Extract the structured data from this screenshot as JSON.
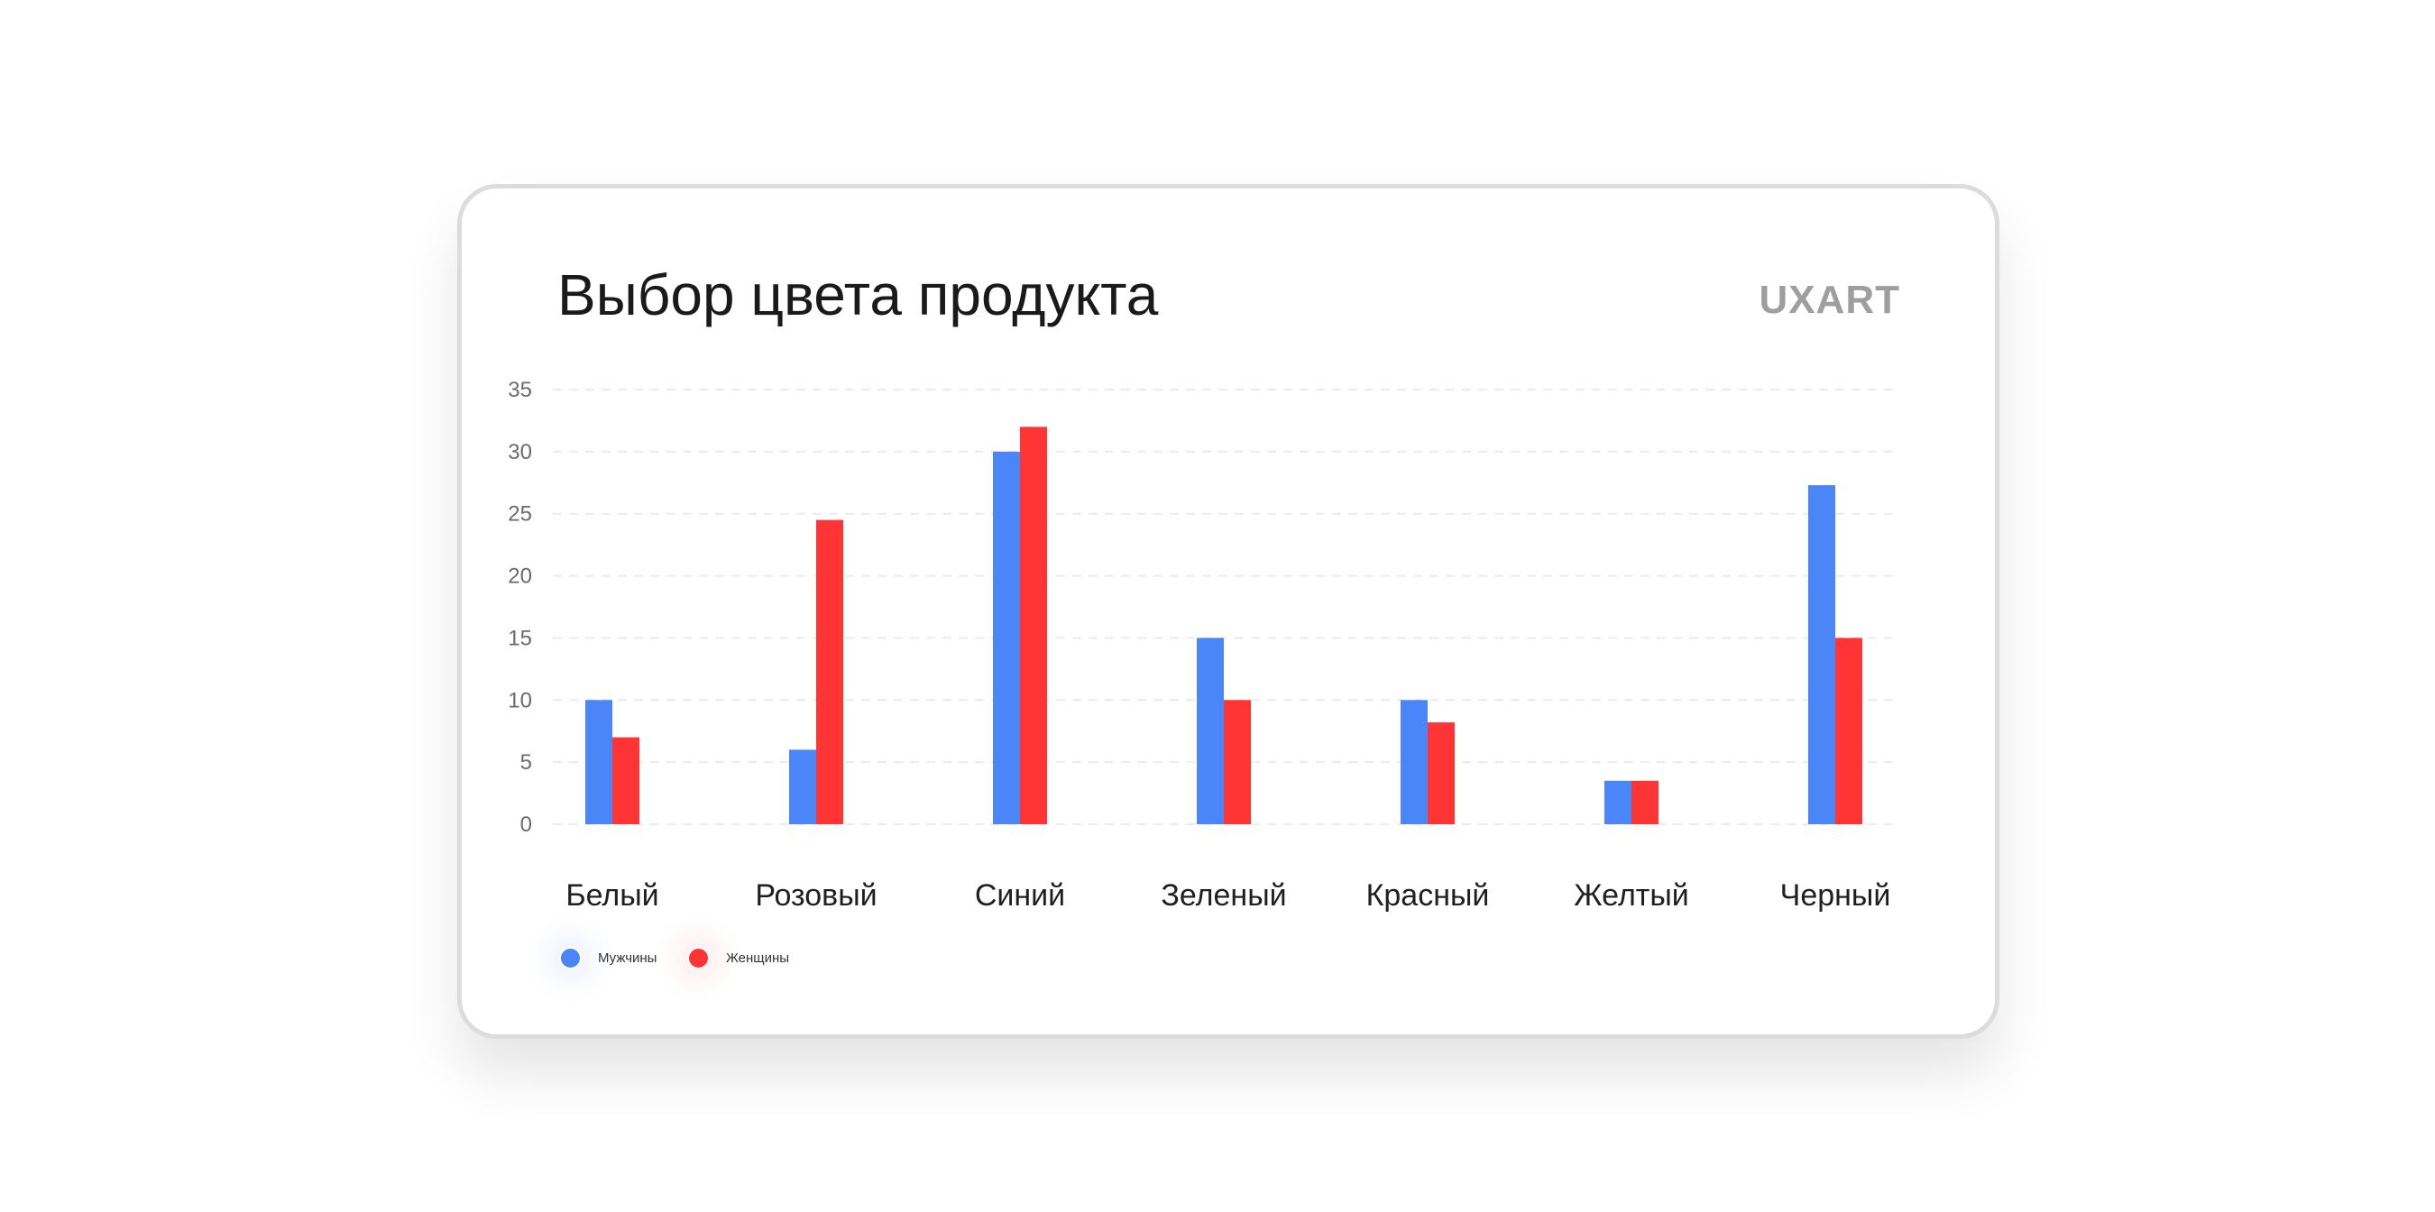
{
  "chart_data": {
    "type": "bar",
    "title": "Выбор цвета продукта",
    "brand": "UXART",
    "categories": [
      "Белый",
      "Розовый",
      "Синий",
      "Зеленый",
      "Красный",
      "Желтый",
      "Черный"
    ],
    "series": [
      {
        "name": "Мужчины",
        "color": "#4a86f7",
        "values": [
          10,
          6,
          30,
          15,
          10,
          3.5,
          27.3
        ]
      },
      {
        "name": "Женщины",
        "color": "#ff3535",
        "values": [
          7,
          24.5,
          32,
          10,
          8.2,
          3.5,
          15
        ]
      }
    ],
    "yticks": [
      "0",
      "5",
      "10",
      "15",
      "20",
      "25",
      "30",
      "35"
    ],
    "ylim": [
      0,
      35
    ],
    "xlabel": "",
    "ylabel": "",
    "grid": true,
    "legend_position": "bottom-left"
  }
}
